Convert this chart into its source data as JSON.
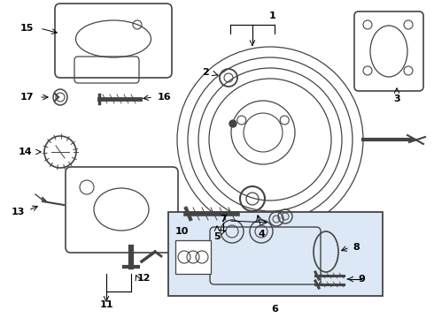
{
  "bg_color": "#ffffff",
  "part_color": "#444444",
  "label_color": "#000000",
  "box_bg": "#dce8f5",
  "fig_w": 4.9,
  "fig_h": 3.6,
  "dpi": 100
}
